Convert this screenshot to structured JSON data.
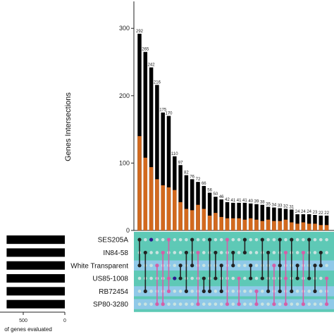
{
  "chart_data": {
    "type": "bar",
    "title": "",
    "ylabel": "Genes Intersections",
    "set_size_xlabel": "of genes evaluated",
    "ylim": [
      0,
      340
    ],
    "yticks": [
      0,
      100,
      200,
      300
    ],
    "set_size_ticks": [
      500,
      0
    ],
    "sets": [
      "SES205A",
      "IN84-58",
      "White Transparent",
      "US85-1008",
      "RB72454",
      "SP80-3280"
    ],
    "set_sizes": [
      700,
      700,
      700,
      700,
      700,
      700
    ],
    "series": [
      {
        "color": "#000000",
        "values": [
          292,
          265,
          242,
          216,
          175,
          170,
          110,
          97,
          82,
          76,
          72,
          66,
          56,
          50,
          46,
          42,
          41,
          41,
          41,
          40,
          39,
          38,
          35,
          34,
          33,
          32,
          31,
          24,
          24,
          24,
          23,
          22,
          22
        ]
      },
      {
        "color": "#d2691e",
        "values": [
          140,
          108,
          94,
          76,
          67,
          64,
          60,
          42,
          32,
          30,
          38,
          32,
          22,
          26,
          20,
          18,
          18,
          18,
          16,
          18,
          16,
          14,
          16,
          14,
          14,
          16,
          12,
          10,
          12,
          10,
          10,
          8,
          8
        ]
      }
    ],
    "bar_labels": [
      "292",
      "265",
      "242",
      "216",
      "175",
      "170",
      "110",
      "97",
      "82",
      "76",
      "72",
      "66",
      "56",
      "50",
      "46",
      "42",
      "41",
      "41",
      "41",
      "40",
      "39",
      "38",
      "35",
      "34",
      "33",
      "32",
      "31",
      "24",
      "24",
      "24",
      "23",
      "22",
      "22"
    ],
    "matrix_colors": {
      "panel": "#5ec9b6",
      "panel_blue": "#8fc9e8",
      "dot_inactive": "#c9e3e0",
      "dot_black": "#222222",
      "dot_pink": "#d45fa8",
      "dot_navy": "#2a1a8c"
    },
    "intersections": [
      {
        "sets": [
          0,
          2
        ],
        "color": "black"
      },
      {
        "sets": [
          1,
          4
        ],
        "color": "black"
      },
      {
        "sets": [
          0
        ],
        "color": "navy"
      },
      {
        "sets": [
          2,
          5
        ],
        "color": "pink"
      },
      {
        "sets": [
          1,
          5
        ],
        "color": "pink"
      },
      {
        "sets": [
          0,
          3,
          4
        ],
        "color": "pink"
      },
      {
        "sets": [
          3
        ],
        "color": "navy"
      },
      {
        "sets": [
          2,
          3
        ],
        "color": "black"
      },
      {
        "sets": [
          1,
          4
        ],
        "color": "black"
      },
      {
        "sets": [
          0,
          2
        ],
        "color": "black"
      },
      {
        "sets": [
          1,
          5
        ],
        "color": "pink"
      },
      {
        "sets": [
          3,
          4
        ],
        "color": "black"
      },
      {
        "sets": [
          0,
          4
        ],
        "color": "black"
      },
      {
        "sets": [
          1,
          3
        ],
        "color": "black"
      },
      {
        "sets": [
          2,
          4
        ],
        "color": "black"
      },
      {
        "sets": [
          0,
          5
        ],
        "color": "pink"
      },
      {
        "sets": [
          1,
          2
        ],
        "color": "black"
      },
      {
        "sets": [
          3,
          5
        ],
        "color": "pink"
      },
      {
        "sets": [
          0,
          1
        ],
        "color": "black"
      },
      {
        "sets": [
          2,
          3
        ],
        "color": "black"
      },
      {
        "sets": [
          4,
          5
        ],
        "color": "pink"
      },
      {
        "sets": [
          0,
          3
        ],
        "color": "black"
      },
      {
        "sets": [
          1,
          4
        ],
        "color": "black"
      },
      {
        "sets": [
          2,
          5
        ],
        "color": "pink"
      },
      {
        "sets": [
          0,
          2,
          4
        ],
        "color": "black"
      },
      {
        "sets": [
          1,
          3,
          5
        ],
        "color": "pink"
      },
      {
        "sets": [
          0,
          4
        ],
        "color": "black"
      },
      {
        "sets": [
          2,
          3
        ],
        "color": "black"
      },
      {
        "sets": [
          1,
          5
        ],
        "color": "pink"
      },
      {
        "sets": [
          0,
          3
        ],
        "color": "black"
      },
      {
        "sets": [
          2,
          4
        ],
        "color": "black"
      },
      {
        "sets": [
          1,
          2
        ],
        "color": "black"
      },
      {
        "sets": [
          3,
          5
        ],
        "color": "pink"
      }
    ]
  }
}
